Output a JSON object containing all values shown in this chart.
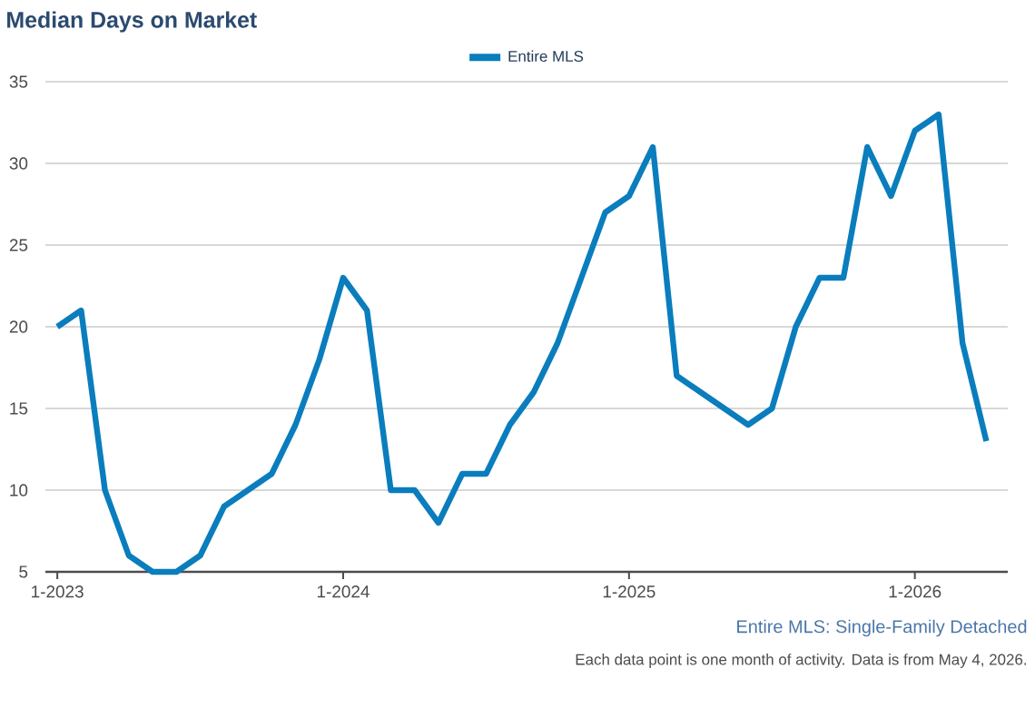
{
  "chart_data": {
    "type": "line",
    "title": "Median Days on Market",
    "x": [
      "2023-01",
      "2023-02",
      "2023-03",
      "2023-04",
      "2023-05",
      "2023-06",
      "2023-07",
      "2023-08",
      "2023-09",
      "2023-10",
      "2023-11",
      "2023-12",
      "2024-01",
      "2024-02",
      "2024-03",
      "2024-04",
      "2024-05",
      "2024-06",
      "2024-07",
      "2024-08",
      "2024-09",
      "2024-10",
      "2024-11",
      "2024-12",
      "2025-01",
      "2025-02",
      "2025-03",
      "2025-04",
      "2025-05",
      "2025-06",
      "2025-07",
      "2025-08",
      "2025-09",
      "2025-10",
      "2025-11",
      "2025-12",
      "2026-01",
      "2026-02",
      "2026-03",
      "2026-04"
    ],
    "series": [
      {
        "name": "Entire MLS",
        "color": "#0a7dbd",
        "values": [
          20,
          21,
          10,
          6,
          5,
          5,
          6,
          9,
          10,
          11,
          14,
          18,
          23,
          21,
          10,
          10,
          8,
          11,
          11,
          14,
          16,
          19,
          23,
          27,
          28,
          31,
          17,
          16,
          15,
          14,
          15,
          20,
          23,
          23,
          31,
          28,
          32,
          33,
          19,
          13
        ]
      }
    ],
    "xlim": [
      "2022-12-16",
      "2026-04-28"
    ],
    "xticks": [
      {
        "value": "2023-01",
        "label": "1-2023"
      },
      {
        "value": "2024-01",
        "label": "1-2024"
      },
      {
        "value": "2025-01",
        "label": "1-2025"
      },
      {
        "value": "2026-01",
        "label": "1-2026"
      }
    ],
    "ylim": [
      5,
      35
    ],
    "yticks": [
      5,
      10,
      15,
      20,
      25,
      30,
      35
    ],
    "grid": "y",
    "legend": "top",
    "line_style": "solid",
    "marker": "none",
    "annotations": [
      "Entire MLS: Single-Family Detached",
      "Each data point is one month of activity. Data is from May 4, 2026."
    ]
  }
}
